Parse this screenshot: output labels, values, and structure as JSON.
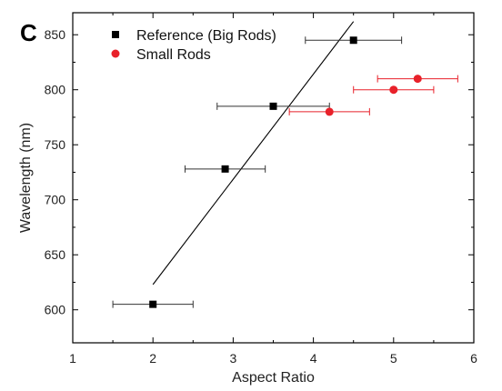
{
  "panel_label": "C",
  "chart_data": {
    "type": "scatter",
    "xlabel": "Aspect Ratio",
    "ylabel": "Wavelength (nm)",
    "xlim": [
      1,
      6
    ],
    "ylim": [
      570,
      870
    ],
    "xticks": [
      1,
      2,
      3,
      4,
      5,
      6
    ],
    "yticks": [
      600,
      650,
      700,
      750,
      800,
      850
    ],
    "grid": false,
    "legend_position": "top-left",
    "series": [
      {
        "name": "Reference (Big Rods)",
        "marker": "square",
        "color": "#000000",
        "errorbar_color": "#333333",
        "points": [
          {
            "x": 2.0,
            "y": 605,
            "xerr": 0.5
          },
          {
            "x": 2.9,
            "y": 728,
            "xerr": 0.5
          },
          {
            "x": 3.5,
            "y": 785,
            "xerr": 0.7
          },
          {
            "x": 4.5,
            "y": 845,
            "xerr": 0.6
          }
        ]
      },
      {
        "name": "Small Rods",
        "marker": "circle",
        "color": "#e8212a",
        "errorbar_color": "#e8212a",
        "points": [
          {
            "x": 4.2,
            "y": 780,
            "xerr": 0.5
          },
          {
            "x": 5.0,
            "y": 800,
            "xerr": 0.5
          },
          {
            "x": 5.3,
            "y": 810,
            "xerr": 0.5
          }
        ]
      }
    ],
    "fit_line": {
      "x": [
        2.0,
        4.5
      ],
      "y": [
        623,
        862
      ],
      "color": "#000000"
    }
  }
}
